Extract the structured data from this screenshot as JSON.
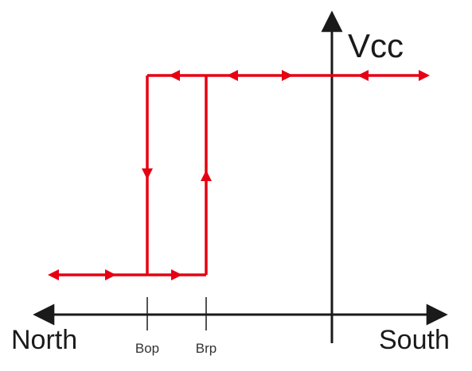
{
  "axes": {
    "y_label": "Vcc",
    "x_left_label": "North",
    "x_right_label": "South"
  },
  "ticks": {
    "bop": "Bop",
    "brp": "Brp"
  },
  "colors": {
    "curve": "#e60012",
    "axis": "#1a1a1a"
  },
  "curve": {
    "description_levels": [
      "low",
      "high"
    ],
    "transition_points": [
      "Bop",
      "Brp"
    ]
  }
}
